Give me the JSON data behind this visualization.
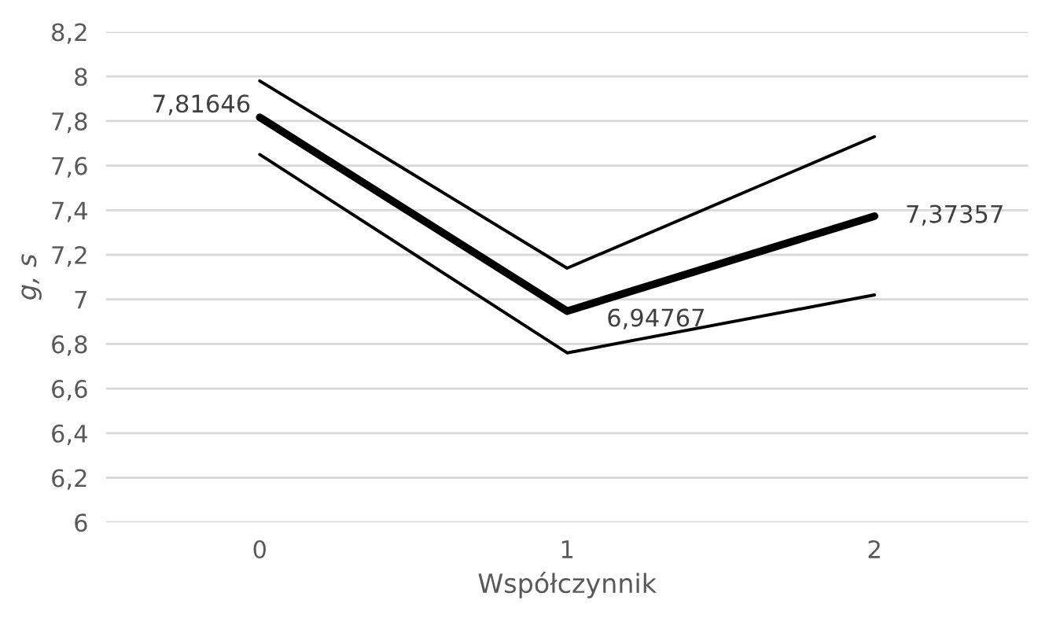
{
  "chart_data": {
    "type": "line",
    "xlabel": "Współczynnik",
    "ylabel": "g, s",
    "categories": [
      "0",
      "1",
      "2"
    ],
    "series": [
      {
        "color": "#000000",
        "values": [
          7.98,
          7.14,
          7.73
        ]
      },
      {
        "color": "#000000",
        "values": [
          7.81646,
          6.94767,
          7.37357
        ],
        "value_labels": [
          "7,81646",
          "6,94767",
          "7,37357"
        ]
      },
      {
        "color": "#000000",
        "values": [
          7.65,
          6.76,
          7.02
        ]
      }
    ],
    "ylim": [
      6,
      8.2
    ],
    "yticks": [
      6,
      {
        "value": 6.2,
        "label": "6,2"
      },
      {
        "value": 6.4,
        "label": "6,4"
      },
      {
        "value": 6.6,
        "label": "6,6"
      },
      {
        "value": 6.8,
        "label": "6,8"
      },
      7,
      {
        "value": 7.2,
        "label": "7,2"
      },
      {
        "value": 7.4,
        "label": "7,4"
      },
      {
        "value": 7.6,
        "label": "7,6"
      },
      {
        "value": 7.8,
        "label": "7,8"
      },
      8,
      {
        "value": 8.2,
        "label": "8,2"
      }
    ],
    "grid": "y",
    "legend": false,
    "marker": "none",
    "line_style": "solid"
  }
}
